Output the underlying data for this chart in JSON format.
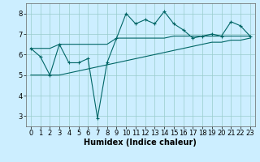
{
  "title": "",
  "xlabel": "Humidex (Indice chaleur)",
  "bg_color": "#cceeff",
  "line_color": "#006666",
  "grid_color": "#99cccc",
  "x": [
    0,
    1,
    2,
    3,
    4,
    5,
    6,
    7,
    8,
    9,
    10,
    11,
    12,
    13,
    14,
    15,
    16,
    17,
    18,
    19,
    20,
    21,
    22,
    23
  ],
  "y_main": [
    6.3,
    5.9,
    5.0,
    6.5,
    5.6,
    5.6,
    5.8,
    2.9,
    5.6,
    6.8,
    8.0,
    7.5,
    7.7,
    7.5,
    8.1,
    7.5,
    7.2,
    6.8,
    6.9,
    7.0,
    6.9,
    7.6,
    7.4,
    6.9
  ],
  "y_upper": [
    6.3,
    6.3,
    6.3,
    6.5,
    6.5,
    6.5,
    6.5,
    6.5,
    6.5,
    6.8,
    6.8,
    6.8,
    6.8,
    6.8,
    6.8,
    6.9,
    6.9,
    6.9,
    6.9,
    6.9,
    6.9,
    6.9,
    6.9,
    6.9
  ],
  "y_lower": [
    5.0,
    5.0,
    5.0,
    5.0,
    5.1,
    5.2,
    5.3,
    5.4,
    5.5,
    5.6,
    5.7,
    5.8,
    5.9,
    6.0,
    6.1,
    6.2,
    6.3,
    6.4,
    6.5,
    6.6,
    6.6,
    6.7,
    6.7,
    6.8
  ],
  "ylim": [
    2.5,
    8.5
  ],
  "xlim": [
    -0.5,
    23.5
  ],
  "yticks": [
    3,
    4,
    5,
    6,
    7,
    8
  ],
  "tick_fontsize": 6,
  "label_fontsize": 7
}
